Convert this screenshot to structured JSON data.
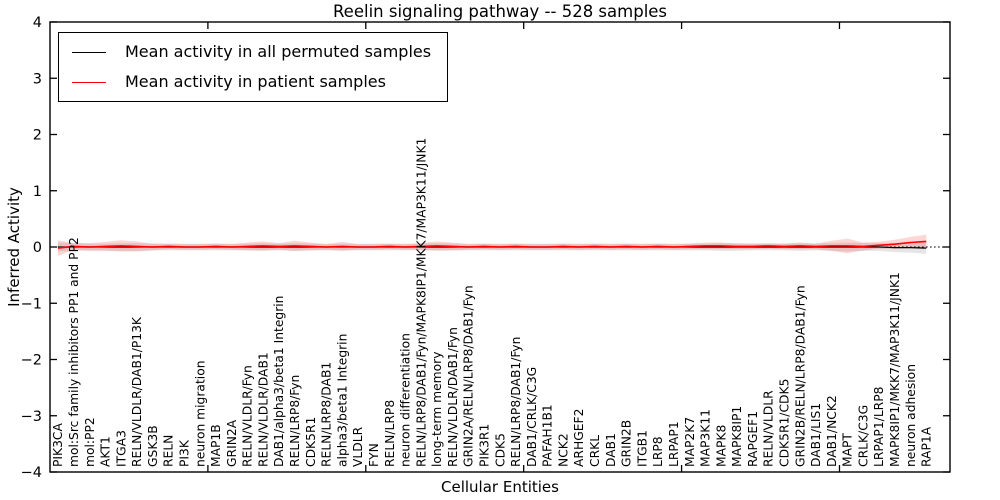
{
  "chart_data": {
    "type": "line",
    "title": "Reelin signaling pathway -- 528 samples",
    "xlabel": "Cellular Entities",
    "ylabel": "Inferred Activity",
    "ylim": [
      -4,
      4
    ],
    "yticks": [
      4,
      3,
      2,
      1,
      0,
      -1,
      -2,
      -3,
      -4
    ],
    "ytick_labels": [
      "4",
      "3",
      "2",
      "1",
      "0",
      "−1",
      "−2",
      "−3",
      "−4"
    ],
    "xticks": [
      10,
      20,
      30,
      40,
      50
    ],
    "grid": false,
    "zero_line": {
      "value": 0,
      "style": "dotted",
      "color": "#000000"
    },
    "legend_position": "upper left",
    "categories": [
      "PIK3CA",
      "mol:Src family inhibitors PP1 and PP2",
      "mol:PP2",
      "AKT1",
      "ITGA3",
      "RELN/VLDLR/DAB1/P13K",
      "GSK3B",
      "RELN",
      "PI3K",
      "neuron migration",
      "MAP1B",
      "GRIN2A",
      "RELN/VLDLR/Fyn",
      "RELN/VLDLR/DAB1",
      "DAB1/alpha3/beta1 Integrin",
      "RELN/LRP8/Fyn",
      "CDK5R1",
      "RELN/LRP8/DAB1",
      "alpha3/beta1 Integrin",
      "VLDLR",
      "FYN",
      "RELN/LRP8",
      "neuron differentiation",
      "RELN/LRP8/DAB1/Fyn/MAPK8IP1/MKK7/MAP3K11/JNK1",
      "long-term memory",
      "RELN/VLDLR/DAB1/Fyn",
      "GRIN2A/RELN/LRP8/DAB1/Fyn",
      "PIK3R1",
      "CDK5",
      "RELN/LRP8/DAB1/Fyn",
      "DAB1/CRLK/C3G",
      "PAFAH1B1",
      "NCK2",
      "ARHGEF2",
      "CRKL",
      "DAB1",
      "GRIN2B",
      "ITGB1",
      "LRP8",
      "LRPAP1",
      "MAP2K7",
      "MAP3K11",
      "MAPK8",
      "MAPK8IP1",
      "RAPGEF1",
      "RELN/VLDLR",
      "CDK5R1/CDK5",
      "GRIN2B/RELN/LRP8/DAB1/Fyn",
      "DAB1/LIS1",
      "DAB1/NCK2",
      "MAPT",
      "CRLK/C3G",
      "LRPAP1/LRP8",
      "MAPK8IP1/MKK7/MAP3K11/JNK1",
      "neuron adhesion",
      "RAP1A"
    ],
    "series": [
      {
        "key": "permuted",
        "name": "Mean activity in all permuted samples",
        "color": "#000000",
        "band_color": "rgba(0,0,0,0.10)",
        "line_width": 1.2,
        "values": [
          0,
          0,
          0,
          0,
          0,
          0,
          0,
          0,
          0,
          0,
          0,
          0,
          0,
          0,
          0,
          0,
          0,
          0,
          0,
          0,
          0,
          0,
          0,
          0,
          0,
          0,
          0,
          0,
          0,
          0,
          0,
          0,
          0,
          0,
          0,
          0,
          0,
          0,
          0,
          0,
          0,
          0,
          0,
          0,
          0,
          0,
          0,
          0,
          0,
          0,
          0,
          0,
          0,
          -0.01,
          -0.01,
          -0.02
        ],
        "band": [
          0.08,
          0.07,
          0.06,
          0.06,
          0.07,
          0.07,
          0.06,
          0.06,
          0.06,
          0.06,
          0.06,
          0.06,
          0.06,
          0.07,
          0.06,
          0.07,
          0.06,
          0.06,
          0.06,
          0.06,
          0.06,
          0.06,
          0.06,
          0.06,
          0.07,
          0.06,
          0.06,
          0.06,
          0.06,
          0.06,
          0.06,
          0.06,
          0.06,
          0.06,
          0.06,
          0.06,
          0.06,
          0.06,
          0.06,
          0.06,
          0.06,
          0.06,
          0.07,
          0.07,
          0.06,
          0.06,
          0.06,
          0.07,
          0.06,
          0.07,
          0.08,
          0.07,
          0.07,
          0.08,
          0.09,
          0.1
        ]
      },
      {
        "key": "patient",
        "name": "Mean activity in patient samples",
        "color": "#ff0000",
        "band_color": "rgba(255,0,0,0.16)",
        "line_width": 1.6,
        "values": [
          -0.02,
          0.01,
          0.0,
          0.01,
          0.02,
          0.01,
          0.0,
          0.01,
          0.0,
          0.0,
          0.01,
          0.0,
          0.01,
          0.02,
          0.01,
          0.02,
          0.01,
          0.0,
          0.01,
          0.0,
          0.0,
          0.01,
          0.0,
          0.01,
          0.02,
          0.01,
          0.0,
          0.01,
          0.0,
          0.01,
          0.0,
          0.0,
          0.01,
          0.0,
          0.01,
          0.0,
          0.01,
          0.0,
          0.01,
          0.0,
          0.01,
          0.02,
          0.02,
          0.01,
          0.01,
          0.02,
          0.01,
          0.02,
          0.01,
          0.02,
          0.02,
          0.01,
          0.03,
          0.05,
          0.08,
          0.1
        ],
        "band": [
          0.14,
          0.06,
          0.07,
          0.08,
          0.1,
          0.09,
          0.06,
          0.05,
          0.05,
          0.05,
          0.05,
          0.05,
          0.07,
          0.08,
          0.06,
          0.09,
          0.07,
          0.05,
          0.08,
          0.05,
          0.05,
          0.05,
          0.05,
          0.06,
          0.08,
          0.07,
          0.05,
          0.05,
          0.05,
          0.05,
          0.05,
          0.05,
          0.05,
          0.05,
          0.05,
          0.05,
          0.05,
          0.05,
          0.05,
          0.05,
          0.05,
          0.06,
          0.06,
          0.05,
          0.05,
          0.05,
          0.05,
          0.06,
          0.05,
          0.09,
          0.13,
          0.07,
          0.06,
          0.08,
          0.1,
          0.12
        ]
      }
    ]
  }
}
